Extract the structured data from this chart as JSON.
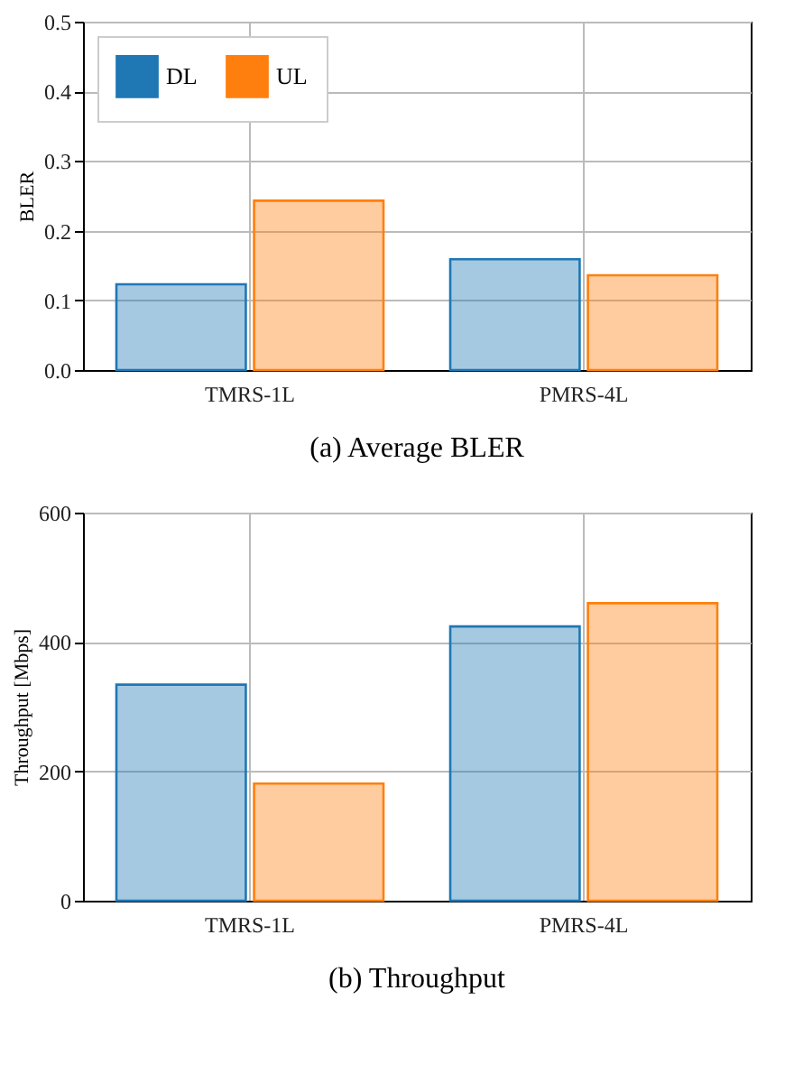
{
  "chart_data": [
    {
      "type": "bar",
      "title": "(a)  Average BLER",
      "ylabel": "BLER",
      "categories": [
        "TMRS-1L",
        "PMRS-4L"
      ],
      "series": [
        {
          "name": "DL",
          "color": "#1f77b4",
          "values": [
            0.123,
            0.159
          ]
        },
        {
          "name": "UL",
          "color": "#ff7f0e",
          "values": [
            0.243,
            0.136
          ]
        }
      ],
      "ylim": [
        0,
        0.5
      ],
      "yticks": [
        {
          "value": 0,
          "label": "0.0"
        },
        0.1,
        0.2,
        0.3,
        0.4,
        0.5
      ],
      "grid": true,
      "legend": "top left"
    },
    {
      "type": "bar",
      "title": "(b)  Throughput",
      "ylabel": "Throughput [Mbps]",
      "categories": [
        "TMRS-1L",
        "PMRS-4L"
      ],
      "series": [
        {
          "name": "DL",
          "color": "#1f77b4",
          "values": [
            334,
            424
          ]
        },
        {
          "name": "UL",
          "color": "#ff7f0e",
          "values": [
            181,
            460
          ]
        }
      ],
      "ylim": [
        0,
        600
      ],
      "yticks": [
        0,
        200,
        400,
        600
      ],
      "grid": true,
      "legend": "top left"
    }
  ]
}
